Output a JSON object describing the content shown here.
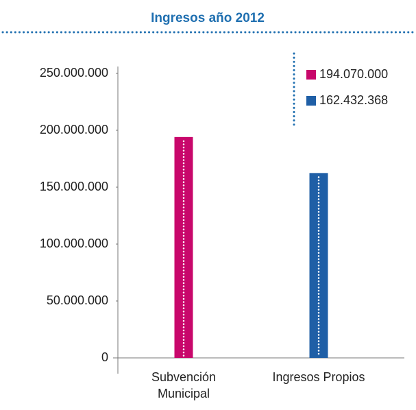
{
  "chart_data": {
    "type": "bar",
    "title": "Ingresos año 2012",
    "categories": [
      "Subvención Municipal",
      "Ingresos Propios"
    ],
    "values": [
      194070000,
      162432368
    ],
    "value_labels": [
      "194.070.000",
      "162.432.368"
    ],
    "colors": [
      "#c8076b",
      "#1f5fa6"
    ],
    "ylim": [
      0,
      250000000
    ],
    "yticks": [
      0,
      {
        "value": 50000000,
        "label": "50.000.000"
      },
      {
        "value": 100000000,
        "label": "100.000.000"
      },
      {
        "value": 150000000,
        "label": "150.000.000"
      },
      {
        "value": 200000000,
        "label": "200.000.000"
      },
      {
        "value": 250000000,
        "label": "250.000.000"
      }
    ],
    "legend": "top-right",
    "grid": false
  }
}
